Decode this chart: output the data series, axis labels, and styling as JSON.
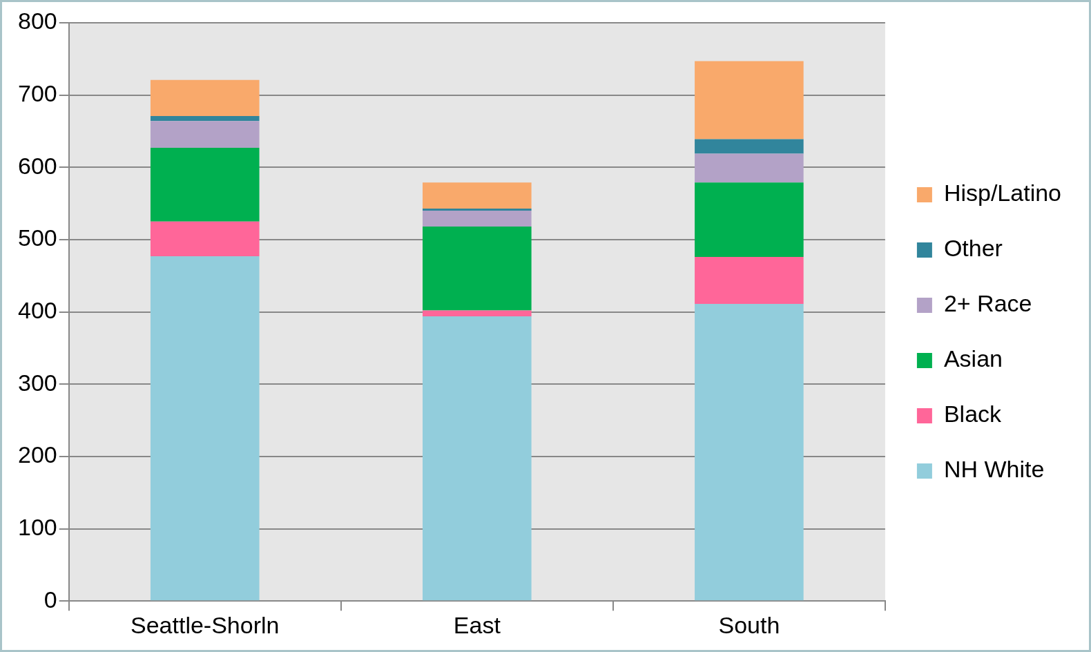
{
  "chart_data": {
    "type": "bar",
    "stacked": true,
    "categories": [
      "Seattle-Shorln",
      "East",
      "South"
    ],
    "series": [
      {
        "name": "NH White",
        "color": "#92cddc",
        "values": [
          477,
          394,
          411
        ]
      },
      {
        "name": "Black",
        "color": "#ff6699",
        "values": [
          48,
          8,
          65
        ]
      },
      {
        "name": "Asian",
        "color": "#00b050",
        "values": [
          102,
          116,
          103
        ]
      },
      {
        "name": "2+ Race",
        "color": "#b3a2c7",
        "values": [
          37,
          22,
          40
        ]
      },
      {
        "name": "Other",
        "color": "#31859c",
        "values": [
          7,
          3,
          20
        ]
      },
      {
        "name": "Hisp/Latino",
        "color": "#f9a96b",
        "values": [
          50,
          36,
          108
        ]
      }
    ],
    "ylim": [
      0,
      800
    ],
    "yticks": [
      0,
      100,
      200,
      300,
      400,
      500,
      600,
      700,
      800
    ],
    "grid": "y",
    "legend": "right"
  }
}
